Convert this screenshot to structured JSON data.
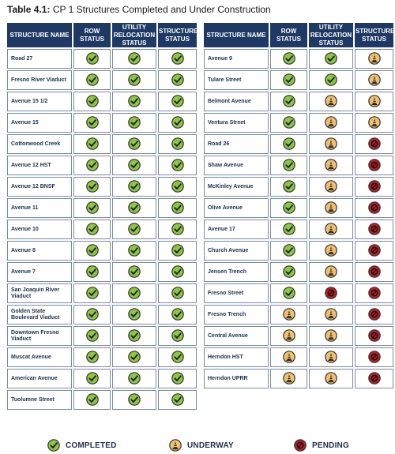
{
  "title": {
    "prefix": "Table 4.1:",
    "text": "CP 1 Structures Completed and Under Construction"
  },
  "columns": [
    "STRUCTURE NAME",
    "ROW STATUS",
    "UTILITY RELOCATION STATUS",
    "STRUCTURE STATUS"
  ],
  "legend": {
    "completed": "COMPLETED",
    "underway": "UNDERWAY",
    "pending": "PENDING"
  },
  "status_colors": {
    "completed": "#8dc63f",
    "underway": "#f2c06b",
    "pending": "#b3202a"
  },
  "left_table": [
    {
      "name": "Road 27",
      "row": "completed",
      "utility": "completed",
      "structure": "completed"
    },
    {
      "name": "Fresno River Viaduct",
      "row": "completed",
      "utility": "completed",
      "structure": "completed"
    },
    {
      "name": "Avenue 15 1/2",
      "row": "completed",
      "utility": "completed",
      "structure": "completed"
    },
    {
      "name": "Avenue 15",
      "row": "completed",
      "utility": "completed",
      "structure": "completed"
    },
    {
      "name": "Cottonwood Creek",
      "row": "completed",
      "utility": "completed",
      "structure": "completed"
    },
    {
      "name": "Avenue 12 HST",
      "row": "completed",
      "utility": "completed",
      "structure": "completed"
    },
    {
      "name": "Avenue 12 BNSF",
      "row": "completed",
      "utility": "completed",
      "structure": "completed"
    },
    {
      "name": "Avenue 11",
      "row": "completed",
      "utility": "completed",
      "structure": "completed"
    },
    {
      "name": "Avenue 10",
      "row": "completed",
      "utility": "completed",
      "structure": "completed"
    },
    {
      "name": "Avenue 8",
      "row": "completed",
      "utility": "completed",
      "structure": "completed"
    },
    {
      "name": "Avenue 7",
      "row": "completed",
      "utility": "completed",
      "structure": "completed"
    },
    {
      "name": "San Joaquin River Viaduct",
      "row": "completed",
      "utility": "completed",
      "structure": "completed"
    },
    {
      "name": "Golden State Boulevard Viaduct",
      "row": "completed",
      "utility": "completed",
      "structure": "completed"
    },
    {
      "name": "Downtown Fresno Viaduct",
      "row": "completed",
      "utility": "completed",
      "structure": "completed"
    },
    {
      "name": "Muscat Avenue",
      "row": "completed",
      "utility": "completed",
      "structure": "completed"
    },
    {
      "name": "American Avenue",
      "row": "completed",
      "utility": "completed",
      "structure": "completed"
    },
    {
      "name": "Tuolumne Street",
      "row": "completed",
      "utility": "completed",
      "structure": "completed"
    }
  ],
  "right_table": [
    {
      "name": "Avenue 9",
      "row": "completed",
      "utility": "completed",
      "structure": "underway"
    },
    {
      "name": "Tulare Street",
      "row": "completed",
      "utility": "completed",
      "structure": "underway"
    },
    {
      "name": "Belmont Avenue",
      "row": "completed",
      "utility": "underway",
      "structure": "underway"
    },
    {
      "name": "Ventura Street",
      "row": "completed",
      "utility": "underway",
      "structure": "underway"
    },
    {
      "name": "Road 26",
      "row": "completed",
      "utility": "underway",
      "structure": "pending"
    },
    {
      "name": "Shaw Avenue",
      "row": "completed",
      "utility": "underway",
      "structure": "pending"
    },
    {
      "name": "McKinley Avenue",
      "row": "completed",
      "utility": "underway",
      "structure": "pending"
    },
    {
      "name": "Olive Avenue",
      "row": "completed",
      "utility": "underway",
      "structure": "pending"
    },
    {
      "name": "Avenue 17",
      "row": "completed",
      "utility": "underway",
      "structure": "pending"
    },
    {
      "name": "Church Avenue",
      "row": "completed",
      "utility": "underway",
      "structure": "pending"
    },
    {
      "name": "Jensen Trench",
      "row": "completed",
      "utility": "underway",
      "structure": "pending"
    },
    {
      "name": "Fresno Street",
      "row": "completed",
      "utility": "pending",
      "structure": "pending"
    },
    {
      "name": "Fresno Trench",
      "row": "underway",
      "utility": "underway",
      "structure": "pending"
    },
    {
      "name": "Central Avenue",
      "row": "underway",
      "utility": "underway",
      "structure": "pending"
    },
    {
      "name": "Herndon HST",
      "row": "underway",
      "utility": "underway",
      "structure": "pending"
    },
    {
      "name": "Herndon UPRR",
      "row": "underway",
      "utility": "underway",
      "structure": "pending"
    }
  ]
}
